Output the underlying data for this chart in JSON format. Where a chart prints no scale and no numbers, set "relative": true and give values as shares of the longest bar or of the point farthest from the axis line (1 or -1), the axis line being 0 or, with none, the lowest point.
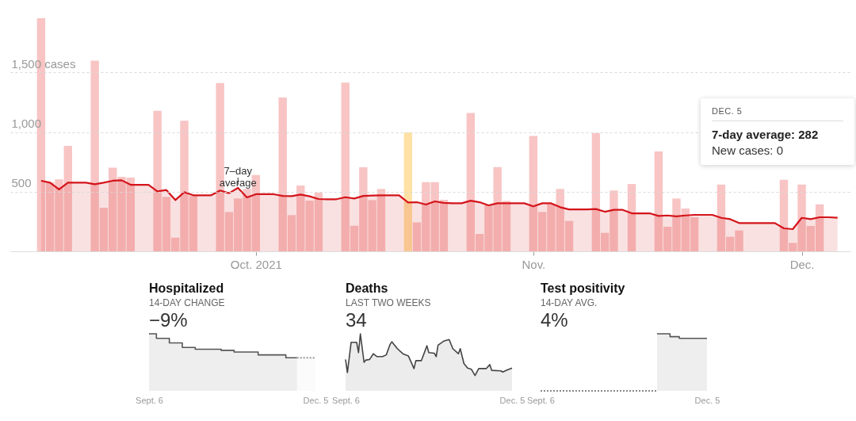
{
  "chart_data": [
    {
      "type": "bar",
      "grid": "y",
      "ylim": [
        0,
        1955
      ],
      "yticks": [
        500,
        {
          "value": 1000,
          "label": "1,000"
        },
        {
          "value": 1500,
          "label": "1,500 cases"
        }
      ],
      "xlim": [
        "2021-09-04",
        "2021-12-06"
      ],
      "xticks": [
        {
          "value": "2021-10-01",
          "label": "Oct. 2021"
        },
        {
          "value": "2021-11-01",
          "label": "Nov."
        },
        {
          "value": "2021-12-01",
          "label": "Dec."
        }
      ],
      "annotations": [
        {
          "text": "7–day average",
          "x": "2021-09-29",
          "y": 532
        },
        "DEC. 5",
        "7-day average: 282",
        "New cases: 0"
      ],
      "x": [
        "2021-09-07",
        "2021-09-08",
        "2021-09-09",
        "2021-09-10",
        "2021-09-11",
        "2021-09-12",
        "2021-09-13",
        "2021-09-14",
        "2021-09-15",
        "2021-09-16",
        "2021-09-17",
        "2021-09-18",
        "2021-09-19",
        "2021-09-20",
        "2021-09-21",
        "2021-09-22",
        "2021-09-23",
        "2021-09-24",
        "2021-09-25",
        "2021-09-26",
        "2021-09-27",
        "2021-09-28",
        "2021-09-29",
        "2021-09-30",
        "2021-10-01",
        "2021-10-02",
        "2021-10-03",
        "2021-10-04",
        "2021-10-05",
        "2021-10-06",
        "2021-10-07",
        "2021-10-08",
        "2021-10-09",
        "2021-10-10",
        "2021-10-11",
        "2021-10-12",
        "2021-10-13",
        "2021-10-14",
        "2021-10-15",
        "2021-10-16",
        "2021-10-17",
        "2021-10-18",
        "2021-10-19",
        "2021-10-20",
        "2021-10-21",
        "2021-10-22",
        "2021-10-23",
        "2021-10-24",
        "2021-10-25",
        "2021-10-26",
        "2021-10-27",
        "2021-10-28",
        "2021-10-29",
        "2021-10-30",
        "2021-10-31",
        "2021-11-01",
        "2021-11-02",
        "2021-11-03",
        "2021-11-04",
        "2021-11-05",
        "2021-11-06",
        "2021-11-07",
        "2021-11-08",
        "2021-11-09",
        "2021-11-10",
        "2021-11-11",
        "2021-11-12",
        "2021-11-13",
        "2021-11-14",
        "2021-11-15",
        "2021-11-16",
        "2021-11-17",
        "2021-11-18",
        "2021-11-19",
        "2021-11-20",
        "2021-11-21",
        "2021-11-22",
        "2021-11-23",
        "2021-11-24",
        "2021-11-25",
        "2021-11-26",
        "2021-11-27",
        "2021-11-28",
        "2021-11-29",
        "2021-11-30",
        "2021-12-01",
        "2021-12-02",
        "2021-12-03",
        "2021-12-04",
        "2021-12-05"
      ],
      "series": [
        {
          "colors": [
            "#f8c4c4",
            "#f8c4c4",
            "#f8c4c4",
            "#f8c4c4",
            "#f8c4c4",
            "#f8c4c4",
            "#f8c4c4",
            "#f8c4c4",
            "#f8c4c4",
            "#f8c4c4",
            "#f8c4c4",
            "#f8c4c4",
            "#f8c4c4",
            "#f8c4c4",
            "#f8c4c4",
            "#f8c4c4",
            "#f8c4c4",
            "#f8c4c4",
            "#f8c4c4",
            "#f8c4c4",
            "#f8c4c4",
            "#f8c4c4",
            "#f8c4c4",
            "#f8c4c4",
            "#f8c4c4",
            "#f8c4c4",
            "#f8c4c4",
            "#f8c4c4",
            "#f8c4c4",
            "#f8c4c4",
            "#f8c4c4",
            "#f8c4c4",
            "#f8c4c4",
            "#f8c4c4",
            "#f8c4c4",
            "#f8c4c4",
            "#f8c4c4",
            "#f8c4c4",
            "#f8c4c4",
            "#f8c4c4",
            "#f8c4c4",
            "#ffe1a5",
            "#f8c4c4",
            "#f8c4c4",
            "#f8c4c4",
            "#f8c4c4",
            "#f8c4c4",
            "#f8c4c4",
            "#f8c4c4",
            "#f8c4c4",
            "#f8c4c4",
            "#f8c4c4",
            "#f8c4c4",
            "#f8c4c4",
            "#f8c4c4",
            "#f8c4c4",
            "#f8c4c4",
            "#f8c4c4",
            "#f8c4c4",
            "#f8c4c4",
            "#f8c4c4",
            "#f8c4c4",
            "#f8c4c4",
            "#f8c4c4",
            "#f8c4c4",
            "#f8c4c4",
            "#f8c4c4",
            "#f8c4c4",
            "#f8c4c4",
            "#f8c4c4",
            "#f8c4c4",
            "#f8c4c4",
            "#f8c4c4",
            "#f8c4c4",
            "#f8c4c4",
            "#f8c4c4",
            "#f8c4c4",
            "#f8c4c4",
            "#f8c4c4",
            "#f8c4c4",
            "#f8c4c4",
            "#f8c4c4",
            "#f8c4c4",
            "#f8c4c4",
            "#f8c4c4",
            "#f8c4c4",
            "#f8c4c4",
            "#f8c4c4",
            "#f8c4c4",
            "#f8c4c4"
          ],
          "values": [
            1955,
            580,
            603,
            884,
            0,
            0,
            1600,
            366,
            702,
            625,
            618,
            0,
            0,
            1179,
            456,
            115,
            1095,
            465,
            0,
            0,
            1412,
            330,
            443,
            523,
            640,
            0,
            0,
            1290,
            304,
            552,
            425,
            492,
            0,
            0,
            1414,
            215,
            705,
            430,
            523,
            0,
            0,
            997,
            242,
            581,
            581,
            432,
            0,
            0,
            1161,
            146,
            392,
            707,
            423,
            0,
            0,
            968,
            330,
            400,
            523,
            255,
            0,
            0,
            991,
            155,
            510,
            0,
            565,
            0,
            0,
            838,
            206,
            443,
            359,
            286,
            0,
            0,
            560,
            122,
            175,
            0,
            0,
            0,
            0,
            600,
            71,
            560,
            213,
            394,
            0,
            0
          ]
        },
        {
          "type": "area",
          "color": "#d4141b",
          "values": [
            592,
            576,
            519,
            576,
            576,
            576,
            563,
            576,
            592,
            596,
            558,
            558,
            558,
            503,
            514,
            430,
            496,
            470,
            470,
            470,
            510,
            488,
            532,
            452,
            479,
            479,
            479,
            465,
            463,
            476,
            461,
            439,
            437,
            437,
            454,
            443,
            465,
            468,
            470,
            470,
            470,
            410,
            412,
            392,
            419,
            406,
            403,
            403,
            425,
            412,
            386,
            403,
            403,
            403,
            403,
            377,
            403,
            403,
            370,
            352,
            352,
            352,
            355,
            332,
            348,
            348,
            319,
            319,
            319,
            297,
            301,
            293,
            301,
            306,
            306,
            306,
            281,
            270,
            237,
            237,
            237,
            237,
            237,
            193,
            186,
            281,
            270,
            286,
            286,
            282
          ]
        }
      ]
    },
    {
      "type": "area",
      "title": "Hospitalized",
      "subtitle": "14-DAY CHANGE",
      "annotations": [
        "−9%"
      ],
      "relative": true,
      "xlim": [
        "2021-09-06",
        "2021-12-05"
      ],
      "xticks": [
        {
          "value": "2021-09-06",
          "label": "Sept. 6"
        },
        {
          "value": "2021-12-05",
          "label": "Dec. 5"
        }
      ],
      "series": [
        {
          "color": "#555555",
          "x": [
            "2021-09-06",
            "2021-09-10",
            "2021-09-10",
            "2021-09-17",
            "2021-09-17",
            "2021-09-24",
            "2021-09-24",
            "2021-10-01",
            "2021-10-01",
            "2021-10-15",
            "2021-10-15",
            "2021-10-22",
            "2021-10-22",
            "2021-11-04",
            "2021-11-04",
            "2021-11-19",
            "2021-11-19",
            "2021-11-25"
          ],
          "values": [
            1,
            1,
            0.92,
            0.92,
            0.84,
            0.84,
            0.76,
            0.76,
            0.73,
            0.73,
            0.71,
            0.71,
            0.68,
            0.68,
            0.63,
            0.63,
            0.58,
            0.58
          ]
        },
        {
          "line_style": "dotted",
          "color": "#999999",
          "x": [
            "2021-11-25",
            "2021-12-05"
          ],
          "values": [
            0.58,
            0.58
          ]
        }
      ]
    },
    {
      "type": "area",
      "title": "Deaths",
      "subtitle": "LAST TWO WEEKS",
      "annotations": [
        "34"
      ],
      "relative": true,
      "xlim": [
        "2021-09-06",
        "2021-12-05"
      ],
      "xticks": [
        {
          "value": "2021-09-06",
          "label": "Sept. 6"
        },
        {
          "value": "2021-12-05",
          "label": "Dec. 5"
        }
      ],
      "series": [
        {
          "color": "#444444",
          "x": [
            "2021-09-06",
            "2021-09-07",
            "2021-09-09",
            "2021-09-12",
            "2021-09-13",
            "2021-09-14",
            "2021-09-16",
            "2021-09-17",
            "2021-09-19",
            "2021-09-21",
            "2021-09-23",
            "2021-09-26",
            "2021-09-28",
            "2021-09-30",
            "2021-10-01",
            "2021-10-04",
            "2021-10-07",
            "2021-10-10",
            "2021-10-13",
            "2021-10-14",
            "2021-10-17",
            "2021-10-20",
            "2021-10-21",
            "2021-10-24",
            "2021-10-25",
            "2021-10-26",
            "2021-10-29",
            "2021-11-01",
            "2021-11-03",
            "2021-11-06",
            "2021-11-07",
            "2021-11-09",
            "2021-11-11",
            "2021-11-13",
            "2021-11-15",
            "2021-11-17",
            "2021-11-21",
            "2021-11-23",
            "2021-11-24",
            "2021-11-29",
            "2021-11-30",
            "2021-12-02",
            "2021-12-05"
          ],
          "values": [
            0.55,
            0.32,
            0.85,
            0.85,
            0.67,
            1,
            0.5,
            0.54,
            0.55,
            0.65,
            0.6,
            0.6,
            0.63,
            0.81,
            0.86,
            0.74,
            0.65,
            0.61,
            0.39,
            0.53,
            0.53,
            0.79,
            0.67,
            0.66,
            0.6,
            0.8,
            0.87,
            0.9,
            0.74,
            0.65,
            0.74,
            0.48,
            0.4,
            0.38,
            0.27,
            0.39,
            0.39,
            0.46,
            0.36,
            0.35,
            0.33,
            0.36,
            0.4
          ]
        }
      ]
    },
    {
      "type": "area",
      "title": "Test positivity",
      "subtitle": "14-DAY AVG.",
      "annotations": [
        "4%"
      ],
      "relative": true,
      "xlim": [
        "2021-09-06",
        "2021-12-05"
      ],
      "xticks": [
        {
          "value": "2021-09-06",
          "label": "Sept. 6"
        },
        {
          "value": "2021-12-05",
          "label": "Dec. 5"
        }
      ],
      "series": [
        {
          "type": "line",
          "line_style": "dotted",
          "color": "#888888",
          "x": [
            "2021-09-06",
            "2021-11-08"
          ],
          "values": [
            0,
            0
          ]
        },
        {
          "color": "#555555",
          "x": [
            "2021-11-08",
            "2021-11-15",
            "2021-11-15",
            "2021-11-20",
            "2021-11-20",
            "2021-12-05"
          ],
          "values": [
            1,
            1,
            0.95,
            0.95,
            0.92,
            0.92
          ]
        }
      ]
    }
  ]
}
